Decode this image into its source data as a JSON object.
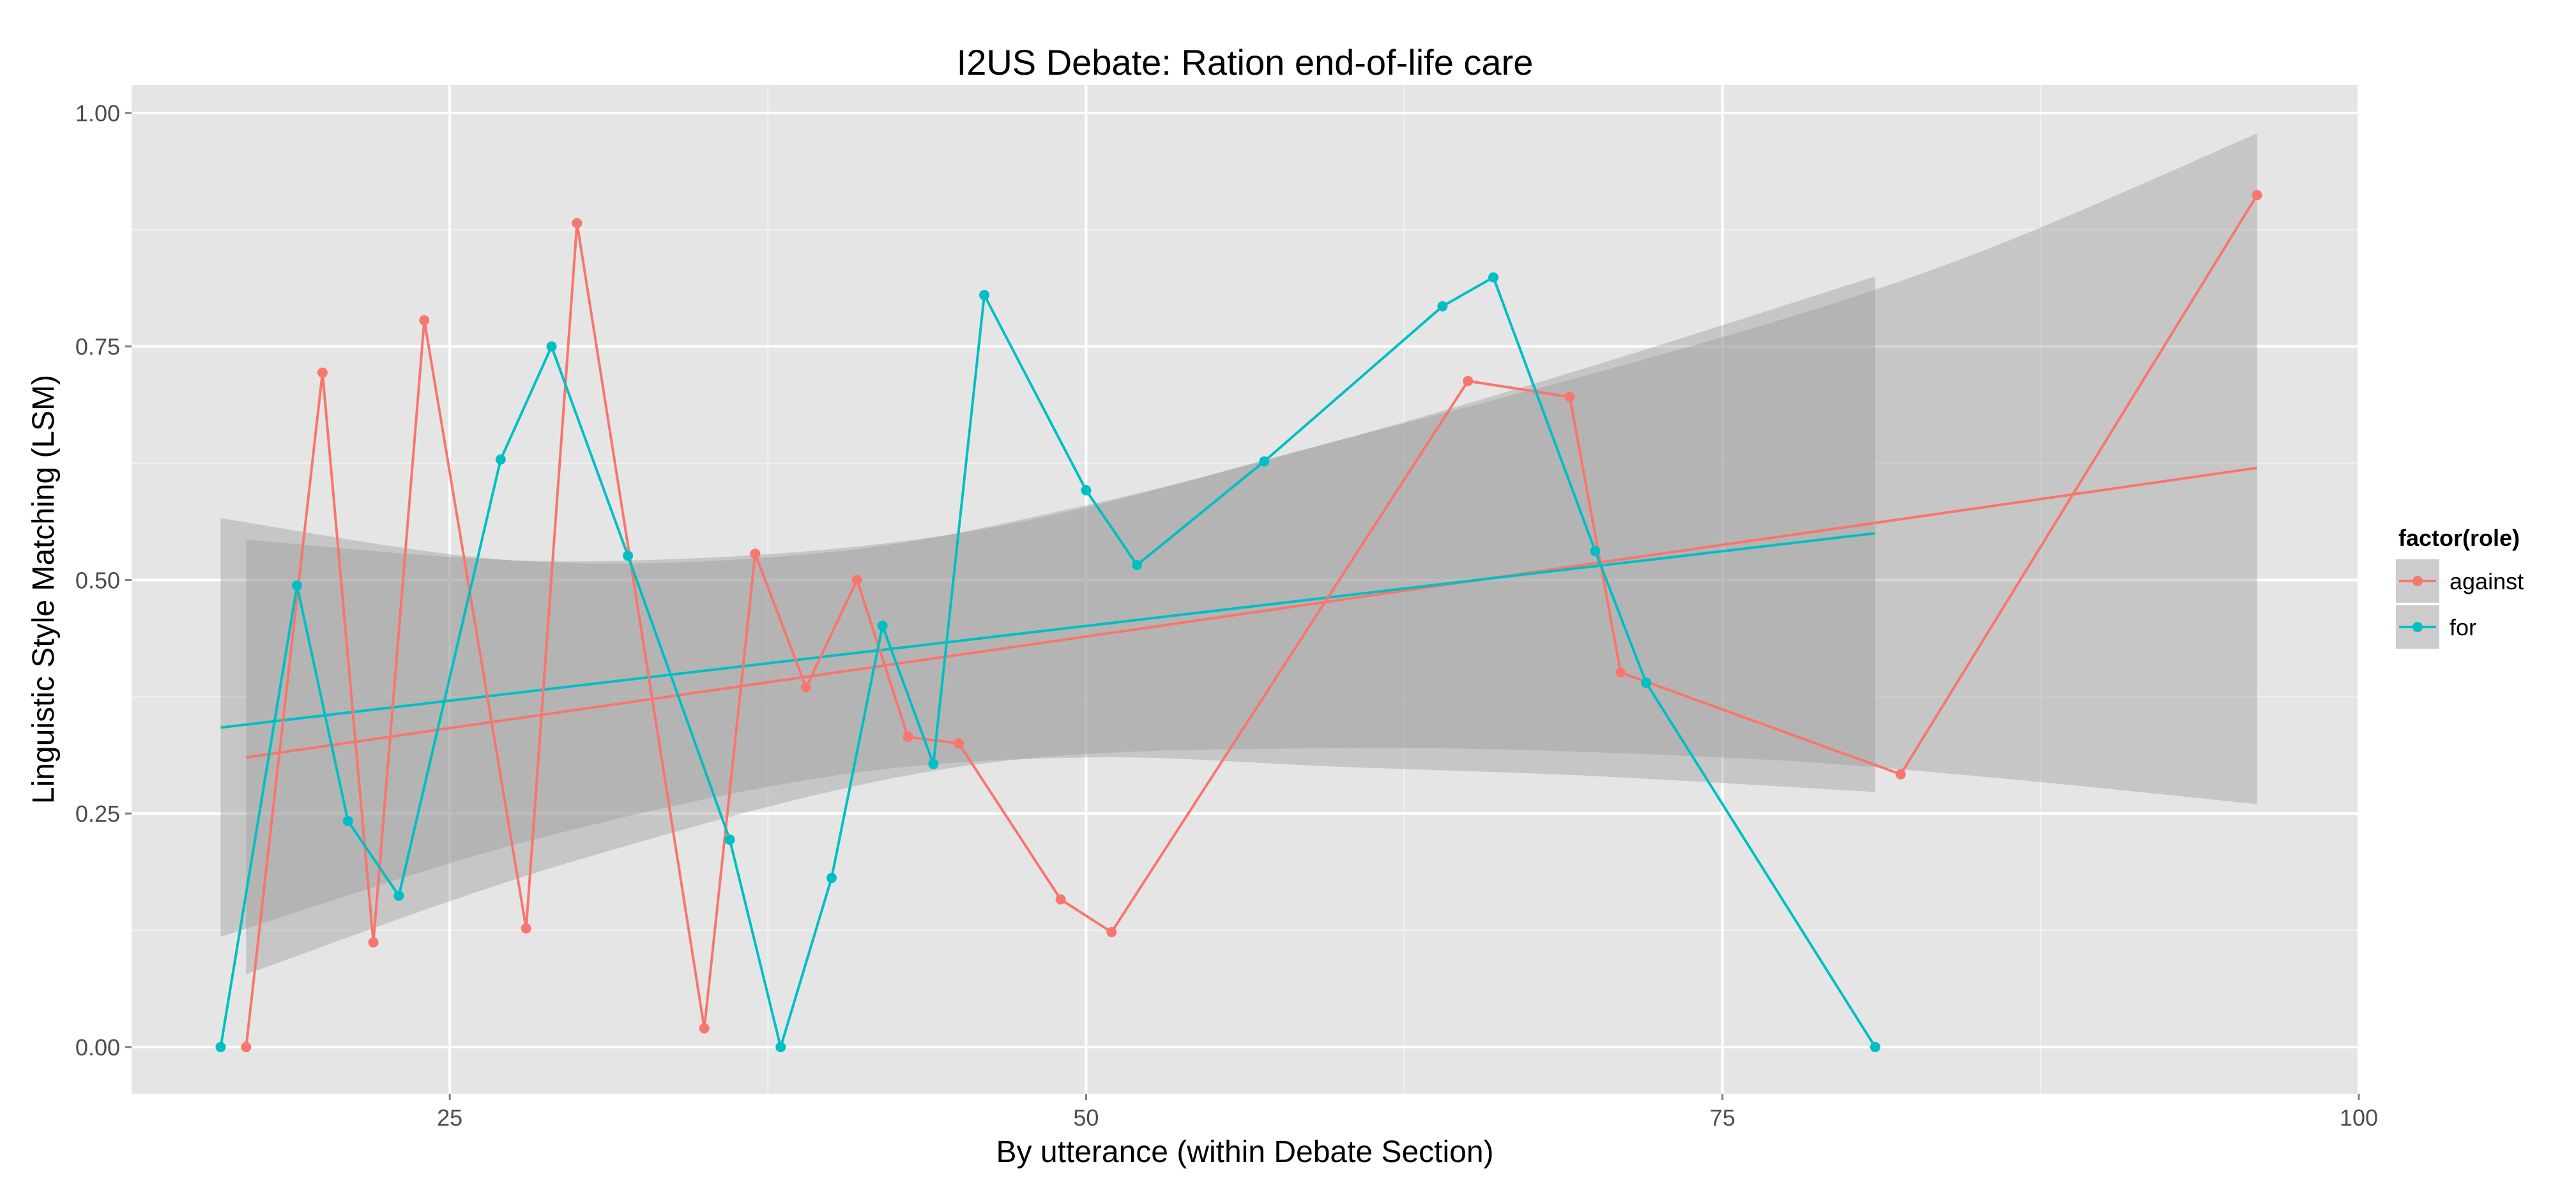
{
  "chart_data": {
    "type": "line",
    "title": "I2US Debate: Ration end-of-life care",
    "xlabel": "By utterance (within Debate Section)",
    "ylabel": "Linguistic Style Matching (LSM)",
    "xlim": [
      12.5,
      100
    ],
    "ylim": [
      -0.05,
      1.03
    ],
    "x_ticks": [
      25,
      50,
      75,
      100
    ],
    "y_ticks": [
      0.0,
      0.25,
      0.5,
      0.75,
      1.0
    ],
    "x_tick_labels": [
      "25",
      "50",
      "75",
      "100"
    ],
    "y_tick_labels": [
      "0.00",
      "0.25",
      "0.50",
      "0.75",
      "1.00"
    ],
    "grid": true,
    "legend": {
      "title": "factor(role)",
      "position": "right",
      "entries": [
        "against",
        "for"
      ]
    },
    "series": [
      {
        "name": "against",
        "color": "#F8766D",
        "x": [
          17,
          20,
          22,
          24,
          28,
          30,
          35,
          37,
          39,
          41,
          43,
          45,
          49,
          51,
          65,
          69,
          71,
          82,
          96
        ],
        "y": [
          0.0,
          0.722,
          0.112,
          0.778,
          0.127,
          0.882,
          0.02,
          0.528,
          0.385,
          0.5,
          0.332,
          0.325,
          0.158,
          0.123,
          0.713,
          0.696,
          0.401,
          0.292,
          0.912
        ],
        "fit": {
          "x_start": 17,
          "x_end": 96,
          "y_start": 0.31,
          "y_end": 0.62
        },
        "ribbon": {
          "x": [
            17,
            30,
            45,
            60,
            75,
            85,
            96
          ],
          "lower": [
            0.078,
            0.2,
            0.3,
            0.32,
            0.31,
            0.29,
            0.26
          ],
          "upper": [
            0.543,
            0.52,
            0.55,
            0.65,
            0.76,
            0.85,
            0.978
          ]
        }
      },
      {
        "name": "for",
        "color": "#00BFC4",
        "x": [
          16,
          19,
          21,
          23,
          27,
          29,
          32,
          36,
          38,
          40,
          42,
          44,
          46,
          50,
          52,
          57,
          64,
          66,
          70,
          72,
          81
        ],
        "y": [
          0.0,
          0.494,
          0.242,
          0.162,
          0.629,
          0.75,
          0.526,
          0.222,
          0.0,
          0.181,
          0.451,
          0.303,
          0.805,
          0.596,
          0.516,
          0.627,
          0.793,
          0.824,
          0.531,
          0.39,
          0.0
        ],
        "fit": {
          "x_start": 16,
          "x_end": 81,
          "y_start": 0.342,
          "y_end": 0.55
        },
        "ribbon": {
          "x": [
            16,
            28,
            40,
            50,
            60,
            70,
            81
          ],
          "lower": [
            0.118,
            0.22,
            0.29,
            0.31,
            0.3,
            0.29,
            0.273
          ],
          "upper": [
            0.566,
            0.52,
            0.53,
            0.58,
            0.65,
            0.73,
            0.825
          ]
        }
      }
    ]
  }
}
